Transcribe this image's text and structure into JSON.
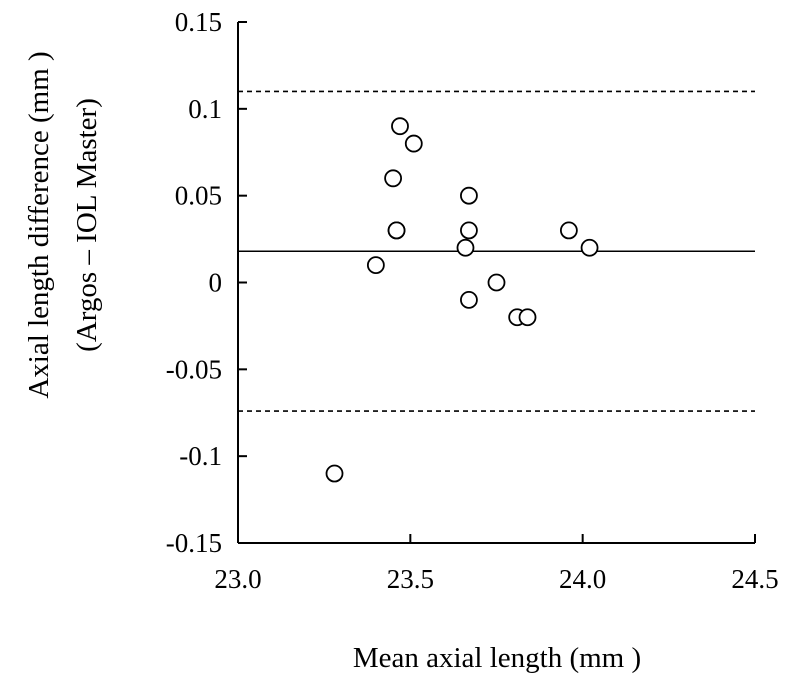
{
  "chart_data": {
    "type": "scatter",
    "xlabel": "Mean axial length (mm )",
    "ylabel_line1": "Axial length difference (mm )",
    "ylabel_line2": "(Argos – IOL Master)",
    "xlim": [
      23.0,
      24.5
    ],
    "ylim": [
      -0.15,
      0.15
    ],
    "x_ticks": [
      "23.0",
      "23.5",
      "24.0",
      "24.5"
    ],
    "y_ticks": [
      "0.15",
      "0.1",
      "0.05",
      "0",
      "-0.05",
      "-0.1",
      "-0.15"
    ],
    "grid": false,
    "reference_lines": [
      {
        "y": 0.11,
        "style": "dashed"
      },
      {
        "y": 0.018,
        "style": "solid"
      },
      {
        "y": -0.074,
        "style": "dashed"
      }
    ],
    "points": [
      {
        "x": 23.28,
        "y": -0.11
      },
      {
        "x": 23.4,
        "y": 0.01
      },
      {
        "x": 23.45,
        "y": 0.06
      },
      {
        "x": 23.46,
        "y": 0.03
      },
      {
        "x": 23.46,
        "y": 0.03
      },
      {
        "x": 23.47,
        "y": 0.09
      },
      {
        "x": 23.51,
        "y": 0.08
      },
      {
        "x": 23.66,
        "y": 0.02
      },
      {
        "x": 23.67,
        "y": 0.05
      },
      {
        "x": 23.67,
        "y": 0.03
      },
      {
        "x": 23.67,
        "y": -0.01
      },
      {
        "x": 23.75,
        "y": 0.0
      },
      {
        "x": 23.81,
        "y": -0.02
      },
      {
        "x": 23.84,
        "y": -0.02
      },
      {
        "x": 23.96,
        "y": 0.03
      },
      {
        "x": 24.02,
        "y": 0.02
      }
    ]
  }
}
